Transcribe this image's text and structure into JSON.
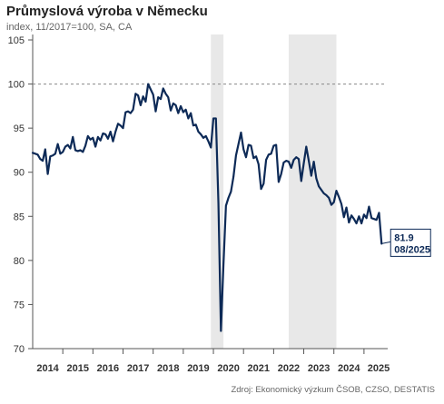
{
  "title": "Průmyslová výroba v Německu",
  "subtitle": "index, 11/2017=100, SA, CA",
  "source": "Zdroj: Ekonomický výzkum ČSOB, CZSO, DESTATIS",
  "chart_data": {
    "type": "line",
    "series": [
      {
        "color": "#0d2a57",
        "points": [
          [
            "2014-01",
            92.2
          ],
          [
            "2014-02",
            92.1
          ],
          [
            "2014-03",
            92.0
          ],
          [
            "2014-04",
            91.5
          ],
          [
            "2014-05",
            91.3
          ],
          [
            "2014-06",
            92.6
          ],
          [
            "2014-07",
            89.8
          ],
          [
            "2014-08",
            91.8
          ],
          [
            "2014-09",
            91.9
          ],
          [
            "2014-10",
            92.1
          ],
          [
            "2014-11",
            93.2
          ],
          [
            "2014-12",
            92.1
          ],
          [
            "2015-01",
            92.3
          ],
          [
            "2015-02",
            92.9
          ],
          [
            "2015-03",
            93.1
          ],
          [
            "2015-04",
            92.7
          ],
          [
            "2015-05",
            94.0
          ],
          [
            "2015-06",
            92.5
          ],
          [
            "2015-07",
            92.4
          ],
          [
            "2015-08",
            92.5
          ],
          [
            "2015-09",
            92.3
          ],
          [
            "2015-10",
            93.0
          ],
          [
            "2015-11",
            94.1
          ],
          [
            "2015-12",
            93.7
          ],
          [
            "2016-01",
            93.9
          ],
          [
            "2016-02",
            92.9
          ],
          [
            "2016-03",
            94.0
          ],
          [
            "2016-04",
            93.6
          ],
          [
            "2016-05",
            94.4
          ],
          [
            "2016-06",
            94.3
          ],
          [
            "2016-07",
            93.8
          ],
          [
            "2016-08",
            94.6
          ],
          [
            "2016-09",
            93.5
          ],
          [
            "2016-10",
            94.6
          ],
          [
            "2016-11",
            95.5
          ],
          [
            "2016-12",
            95.3
          ],
          [
            "2017-01",
            95.0
          ],
          [
            "2017-02",
            96.8
          ],
          [
            "2017-03",
            96.9
          ],
          [
            "2017-04",
            96.7
          ],
          [
            "2017-05",
            97.1
          ],
          [
            "2017-06",
            98.9
          ],
          [
            "2017-07",
            98.7
          ],
          [
            "2017-08",
            97.6
          ],
          [
            "2017-09",
            98.6
          ],
          [
            "2017-10",
            98.0
          ],
          [
            "2017-11",
            100.0
          ],
          [
            "2017-12",
            99.4
          ],
          [
            "2018-01",
            98.8
          ],
          [
            "2018-02",
            96.9
          ],
          [
            "2018-03",
            98.5
          ],
          [
            "2018-04",
            98.3
          ],
          [
            "2018-05",
            99.5
          ],
          [
            "2018-06",
            98.9
          ],
          [
            "2018-07",
            98.5
          ],
          [
            "2018-08",
            97.0
          ],
          [
            "2018-09",
            97.8
          ],
          [
            "2018-10",
            97.6
          ],
          [
            "2018-11",
            96.7
          ],
          [
            "2018-12",
            97.5
          ],
          [
            "2019-01",
            96.8
          ],
          [
            "2019-02",
            97.1
          ],
          [
            "2019-03",
            96.1
          ],
          [
            "2019-04",
            96.7
          ],
          [
            "2019-05",
            95.3
          ],
          [
            "2019-06",
            95.4
          ],
          [
            "2019-07",
            94.6
          ],
          [
            "2019-08",
            94.3
          ],
          [
            "2019-09",
            93.9
          ],
          [
            "2019-10",
            94.1
          ],
          [
            "2019-11",
            93.5
          ],
          [
            "2019-12",
            92.8
          ],
          [
            "2020-01",
            96.1
          ],
          [
            "2020-02",
            96.1
          ],
          [
            "2020-03",
            86.5
          ],
          [
            "2020-04",
            72.0
          ],
          [
            "2020-05",
            79.5
          ],
          [
            "2020-06",
            86.2
          ],
          [
            "2020-07",
            87.1
          ],
          [
            "2020-08",
            87.8
          ],
          [
            "2020-09",
            89.5
          ],
          [
            "2020-10",
            91.9
          ],
          [
            "2020-11",
            93.2
          ],
          [
            "2020-12",
            94.5
          ],
          [
            "2021-01",
            92.6
          ],
          [
            "2021-02",
            91.7
          ],
          [
            "2021-03",
            93.1
          ],
          [
            "2021-04",
            93.0
          ],
          [
            "2021-05",
            91.6
          ],
          [
            "2021-06",
            91.8
          ],
          [
            "2021-07",
            90.9
          ],
          [
            "2021-08",
            88.1
          ],
          [
            "2021-09",
            88.7
          ],
          [
            "2021-10",
            91.4
          ],
          [
            "2021-11",
            92.0
          ],
          [
            "2021-12",
            92.1
          ],
          [
            "2022-01",
            93.0
          ],
          [
            "2022-02",
            93.1
          ],
          [
            "2022-03",
            88.9
          ],
          [
            "2022-04",
            89.8
          ],
          [
            "2022-05",
            91.1
          ],
          [
            "2022-06",
            91.3
          ],
          [
            "2022-07",
            91.2
          ],
          [
            "2022-08",
            90.5
          ],
          [
            "2022-09",
            91.4
          ],
          [
            "2022-10",
            91.7
          ],
          [
            "2022-11",
            91.5
          ],
          [
            "2022-12",
            89.0
          ],
          [
            "2023-01",
            91.0
          ],
          [
            "2023-02",
            92.9
          ],
          [
            "2023-03",
            91.3
          ],
          [
            "2023-04",
            89.6
          ],
          [
            "2023-05",
            91.2
          ],
          [
            "2023-06",
            89.3
          ],
          [
            "2023-07",
            88.4
          ],
          [
            "2023-08",
            88.0
          ],
          [
            "2023-09",
            87.6
          ],
          [
            "2023-10",
            87.4
          ],
          [
            "2023-11",
            87.1
          ],
          [
            "2023-12",
            86.3
          ],
          [
            "2024-01",
            86.6
          ],
          [
            "2024-02",
            87.9
          ],
          [
            "2024-03",
            87.2
          ],
          [
            "2024-04",
            86.4
          ],
          [
            "2024-05",
            84.9
          ],
          [
            "2024-06",
            86.0
          ],
          [
            "2024-07",
            84.3
          ],
          [
            "2024-08",
            85.1
          ],
          [
            "2024-09",
            84.7
          ],
          [
            "2024-10",
            84.2
          ],
          [
            "2024-11",
            85.0
          ],
          [
            "2024-12",
            84.2
          ],
          [
            "2025-01",
            85.2
          ],
          [
            "2025-02",
            84.8
          ],
          [
            "2025-03",
            86.1
          ],
          [
            "2025-04",
            84.8
          ],
          [
            "2025-05",
            84.7
          ],
          [
            "2025-06",
            84.6
          ],
          [
            "2025-07",
            85.4
          ],
          [
            "2025-08",
            81.9
          ]
        ]
      }
    ],
    "ylim": [
      70,
      105
    ],
    "y_ticks": [
      70,
      75,
      80,
      85,
      90,
      95,
      100,
      105
    ],
    "x_ticks": [
      "2014",
      "2015",
      "2016",
      "2017",
      "2018",
      "2019",
      "2020",
      "2021",
      "2022",
      "2023",
      "2024",
      "2025"
    ],
    "reference_line": {
      "value": 100,
      "style": "dashed",
      "color": "#888888"
    },
    "shaded_periods": [
      {
        "start": "2019-12",
        "end": "2020-05"
      },
      {
        "start": "2022-07",
        "end": "2024-02"
      }
    ],
    "shade_color": "#e8e8e8",
    "callout": {
      "value": "81.9",
      "date": "08/2025"
    },
    "grid": false
  }
}
